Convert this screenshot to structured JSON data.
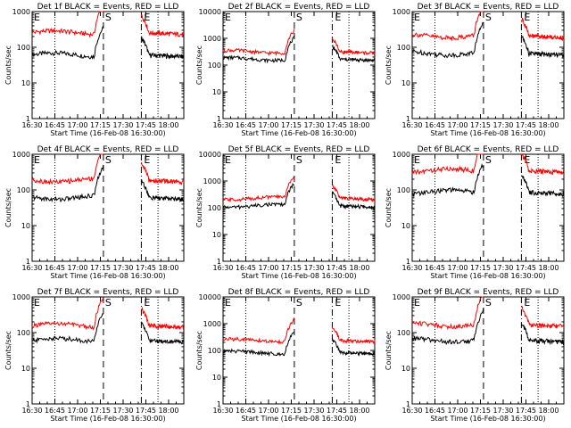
{
  "figure": {
    "ylabel": "Counts/sec",
    "xlabel": "Start Time (16-Feb-08 16:30:00)",
    "yticks": [
      "1",
      "10",
      "100",
      "1000",
      "10000"
    ],
    "xticks": [
      "16:30",
      "16:45",
      "17:00",
      "17:15",
      "17:30",
      "17:45",
      "18:00"
    ],
    "marker_s": "S",
    "marker_e": "E",
    "events_color": "#000000",
    "lld_color": "#ff0000"
  },
  "chart_data": [
    {
      "type": "line",
      "title": "Det 1f BLACK = Events, RED = LLD",
      "ylim": [
        1,
        1000
      ],
      "log_y": true,
      "x_range": [
        "16:30",
        "18:10"
      ],
      "series": [
        {
          "name": "BLACK = Events",
          "level": 62
        },
        {
          "name": "RED = LLD",
          "level": 260
        }
      ],
      "gap": [
        "17:17",
        "17:42"
      ]
    },
    {
      "type": "line",
      "title": "Det 2f BLACK = Events, RED = LLD",
      "ylim": [
        1,
        10000
      ],
      "log_y": true,
      "x_range": [
        "16:30",
        "18:10"
      ],
      "series": [
        {
          "name": "BLACK = Events",
          "level": 170
        },
        {
          "name": "RED = LLD",
          "level": 320
        }
      ],
      "gap": [
        "17:17",
        "17:42"
      ]
    },
    {
      "type": "line",
      "title": "Det 3f BLACK = Events, RED = LLD",
      "ylim": [
        1,
        1000
      ],
      "log_y": true,
      "x_range": [
        "16:30",
        "18:10"
      ],
      "series": [
        {
          "name": "BLACK = Events",
          "level": 68
        },
        {
          "name": "RED = LLD",
          "level": 210
        }
      ],
      "gap": [
        "17:17",
        "17:42"
      ]
    },
    {
      "type": "line",
      "title": "Det 4f BLACK = Events, RED = LLD",
      "ylim": [
        1,
        1000
      ],
      "log_y": true,
      "x_range": [
        "16:30",
        "18:10"
      ],
      "series": [
        {
          "name": "BLACK = Events",
          "level": 62
        },
        {
          "name": "RED = LLD",
          "level": 190
        }
      ],
      "gap": [
        "17:17",
        "17:42"
      ]
    },
    {
      "type": "line",
      "title": "Det 5f BLACK = Events, RED = LLD",
      "ylim": [
        1,
        10000
      ],
      "log_y": true,
      "x_range": [
        "16:30",
        "18:10"
      ],
      "series": [
        {
          "name": "BLACK = Events",
          "level": 120
        },
        {
          "name": "RED = LLD",
          "level": 230
        }
      ],
      "gap": [
        "17:17",
        "17:42"
      ]
    },
    {
      "type": "line",
      "title": "Det 6f BLACK = Events, RED = LLD",
      "ylim": [
        1,
        1000
      ],
      "log_y": true,
      "x_range": [
        "16:30",
        "18:10"
      ],
      "series": [
        {
          "name": "BLACK = Events",
          "level": 88
        },
        {
          "name": "RED = LLD",
          "level": 350
        }
      ],
      "gap": [
        "17:17",
        "17:42"
      ]
    },
    {
      "type": "line",
      "title": "Det 7f BLACK = Events, RED = LLD",
      "ylim": [
        1,
        1000
      ],
      "log_y": true,
      "x_range": [
        "16:30",
        "18:10"
      ],
      "series": [
        {
          "name": "BLACK = Events",
          "level": 62
        },
        {
          "name": "RED = LLD",
          "level": 160
        }
      ],
      "gap": [
        "17:17",
        "17:42"
      ]
    },
    {
      "type": "line",
      "title": "Det 8f BLACK = Events, RED = LLD",
      "ylim": [
        1,
        10000
      ],
      "log_y": true,
      "x_range": [
        "16:30",
        "18:10"
      ],
      "series": [
        {
          "name": "BLACK = Events",
          "level": 85
        },
        {
          "name": "RED = LLD",
          "level": 240
        }
      ],
      "gap": [
        "17:17",
        "17:42"
      ]
    },
    {
      "type": "line",
      "title": "Det 9f BLACK = Events, RED = LLD",
      "ylim": [
        1,
        1000
      ],
      "log_y": true,
      "x_range": [
        "16:30",
        "18:10"
      ],
      "series": [
        {
          "name": "BLACK = Events",
          "level": 62
        },
        {
          "name": "RED = LLD",
          "level": 170
        }
      ],
      "gap": [
        "17:17",
        "17:42"
      ]
    }
  ]
}
